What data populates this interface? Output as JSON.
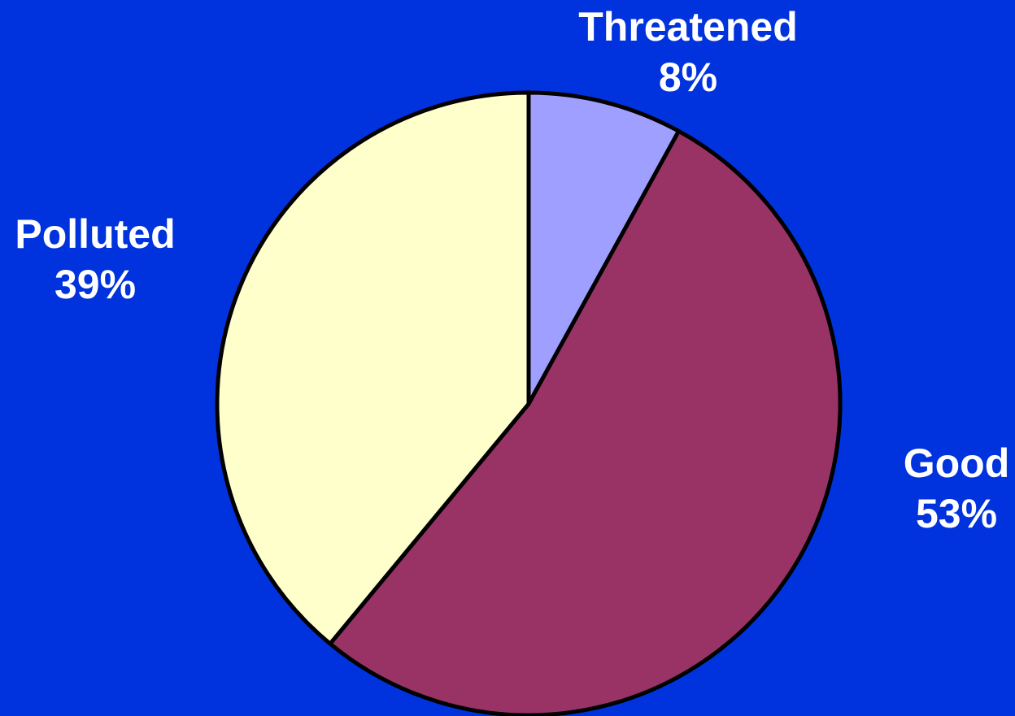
{
  "background_color": "#0033DD",
  "chart_data": {
    "type": "pie",
    "title": "",
    "start_angle_deg": 0,
    "direction": "clockwise",
    "outline_color": "#000000",
    "slices": [
      {
        "label": "Threatened",
        "value": 8,
        "value_label": "8%",
        "color": "#9F9FFF"
      },
      {
        "label": "Good",
        "value": 53,
        "value_label": "53%",
        "color": "#993366"
      },
      {
        "label": "Polluted",
        "value": 39,
        "value_label": "39%",
        "color": "#FFFFCC"
      }
    ]
  }
}
